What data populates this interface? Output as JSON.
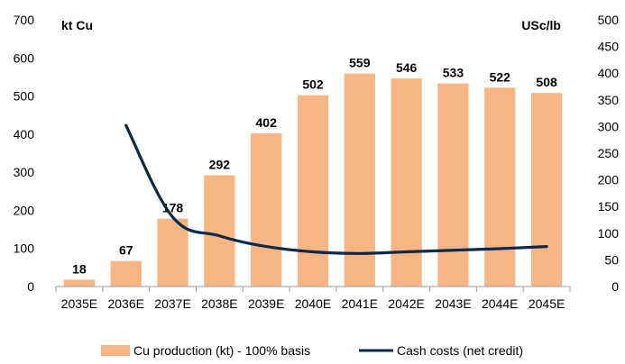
{
  "chart_data": {
    "type": "bar",
    "categories": [
      "2035E",
      "2036E",
      "2037E",
      "2038E",
      "2039E",
      "2040E",
      "2041E",
      "2042E",
      "2043E",
      "2044E",
      "2045E"
    ],
    "series": [
      {
        "name": "Cu production (kt) - 100% basis",
        "type": "bar",
        "axis": "left",
        "color": "#F6B582",
        "values": [
          18,
          67,
          178,
          292,
          402,
          502,
          559,
          546,
          533,
          522,
          508
        ],
        "data_labels": [
          "18",
          "67",
          "178",
          "292",
          "402",
          "502",
          "559",
          "546",
          "533",
          "522",
          "508"
        ]
      },
      {
        "name": "Cash costs (net credit)",
        "type": "line",
        "axis": "right",
        "color": "#0B2A4A",
        "values": [
          null,
          302,
          130,
          95,
          75,
          65,
          62,
          65,
          68,
          71,
          75
        ]
      }
    ],
    "left_axis": {
      "label": "kt Cu",
      "range": [
        0,
        700
      ],
      "ticks": [
        "0",
        "100",
        "200",
        "300",
        "400",
        "500",
        "600",
        "700"
      ]
    },
    "right_axis": {
      "label": "USc/lb",
      "range": [
        0,
        500
      ],
      "ticks": [
        "0",
        "50",
        "100",
        "150",
        "200",
        "250",
        "300",
        "350",
        "400",
        "450",
        "500"
      ]
    },
    "grid": false,
    "legend_position": "bottom"
  }
}
